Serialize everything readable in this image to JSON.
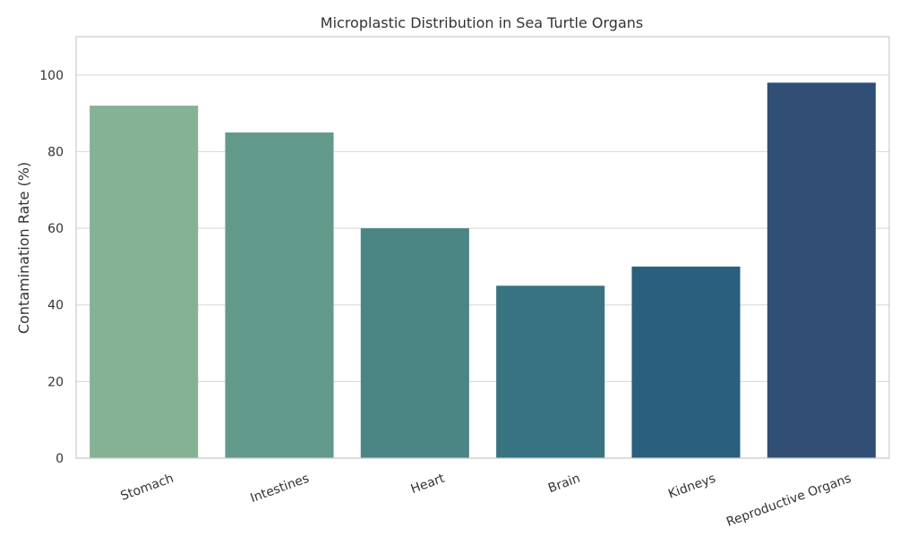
{
  "chart_data": {
    "type": "bar",
    "title": "Microplastic Distribution in Sea Turtle Organs",
    "xlabel": "",
    "ylabel": "Contamination Rate (%)",
    "categories": [
      "Stomach",
      "Intestines",
      "Heart",
      "Brain",
      "Kidneys",
      "Reproductive Organs"
    ],
    "values": [
      92,
      85,
      60,
      45,
      50,
      98
    ],
    "colors": [
      "#84b292",
      "#619a8b",
      "#4a8583",
      "#377380",
      "#2a5f7d",
      "#314f75"
    ],
    "ylim": [
      0,
      110
    ],
    "yticks": [
      0,
      20,
      40,
      60,
      80,
      100
    ],
    "grid": true,
    "legend": "none"
  }
}
